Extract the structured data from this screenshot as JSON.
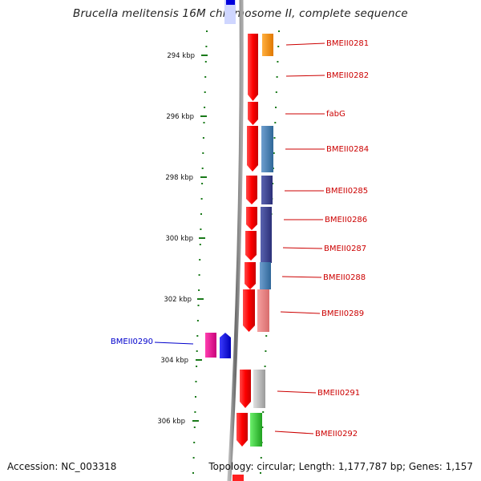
{
  "title": "Brucella melitensis 16M chromosome II, complete sequence",
  "accession": "Accession: NC_003318",
  "topology": "Topology: circular; Length: 1,177,787 bp; Genes: 1,157",
  "colors": {
    "strand": "#ff0000",
    "tick": "#1a7a1a",
    "backbone": "#7a7a7a",
    "label_red": "#cc0000",
    "label_blue": "#0000cc"
  },
  "ticks": [
    {
      "label": "294 kbp"
    },
    {
      "label": "296 kbp"
    },
    {
      "label": "298 kbp"
    },
    {
      "label": "300 kbp"
    },
    {
      "label": "302 kbp"
    },
    {
      "label": "304 kbp"
    },
    {
      "label": "306 kbp"
    }
  ],
  "genes": [
    {
      "label": "BMEII0281"
    },
    {
      "label": "BMEII0282"
    },
    {
      "label": "fabG"
    },
    {
      "label": "BMEII0284"
    },
    {
      "label": "BMEII0285"
    },
    {
      "label": "BMEII0286"
    },
    {
      "label": "BMEII0287"
    },
    {
      "label": "BMEII0288"
    },
    {
      "label": "BMEII0289"
    },
    {
      "label": "BMEII0290"
    },
    {
      "label": "BMEII0291"
    },
    {
      "label": "BMEII0292"
    }
  ]
}
